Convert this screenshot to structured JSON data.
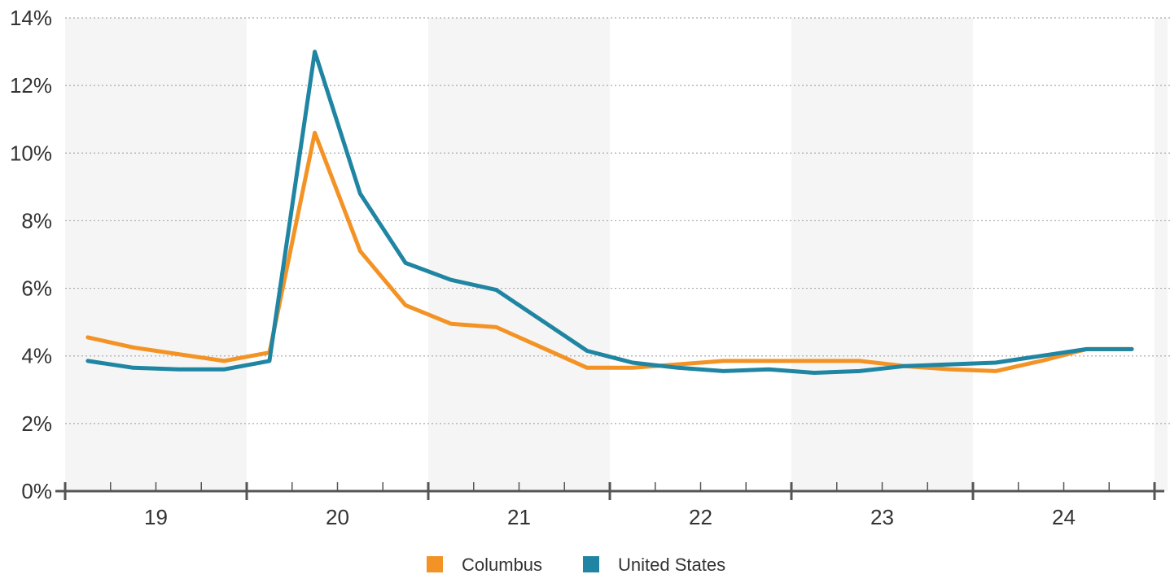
{
  "chart_data": {
    "type": "line",
    "title": "",
    "xlabel": "",
    "ylabel": "",
    "ylim": [
      0,
      14
    ],
    "yticks": [
      0,
      2,
      4,
      6,
      8,
      10,
      12,
      14
    ],
    "ytick_labels": [
      "0%",
      "2%",
      "4%",
      "6%",
      "8%",
      "10%",
      "12%",
      "14%"
    ],
    "x_unit": "quarter",
    "x_start": "2019 Q1",
    "year_labels": [
      "19",
      "20",
      "21",
      "22",
      "23",
      "24"
    ],
    "grid": "horizontal dotted",
    "alternating_year_shading": true,
    "legend_position": "bottom-center",
    "series": [
      {
        "name": "Columbus",
        "color": "#F39325",
        "values": [
          4.55,
          4.25,
          4.05,
          3.85,
          4.1,
          10.6,
          7.1,
          5.5,
          4.95,
          4.85,
          4.25,
          3.65,
          3.65,
          3.75,
          3.85,
          3.85,
          3.85,
          3.85,
          3.7,
          3.6,
          3.55,
          3.85,
          4.2,
          4.2
        ]
      },
      {
        "name": "United States",
        "color": "#1F85A2",
        "values": [
          3.85,
          3.65,
          3.6,
          3.6,
          3.85,
          13.0,
          8.8,
          6.75,
          6.25,
          5.95,
          5.05,
          4.15,
          3.8,
          3.65,
          3.55,
          3.6,
          3.5,
          3.55,
          3.7,
          3.75,
          3.8,
          4.0,
          4.2,
          4.2
        ]
      }
    ]
  }
}
